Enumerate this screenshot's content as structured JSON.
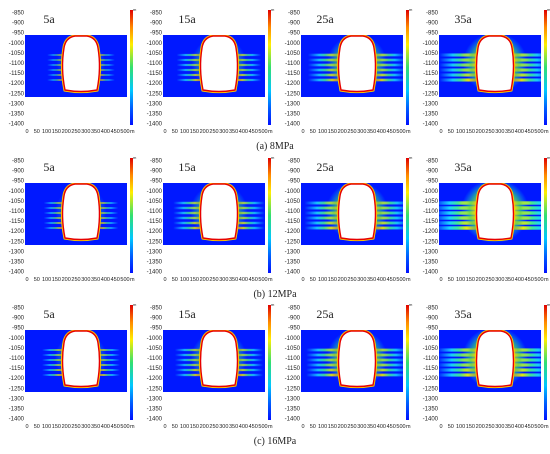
{
  "figure": {
    "rows": [
      {
        "caption": "(a) 8MPa",
        "pressure_mpa": 8,
        "panels": [
          {
            "time_label": "5a",
            "diffusion_level": 0.2
          },
          {
            "time_label": "15a",
            "diffusion_level": 0.45
          },
          {
            "time_label": "25a",
            "diffusion_level": 0.65
          },
          {
            "time_label": "35a",
            "diffusion_level": 0.85
          }
        ]
      },
      {
        "caption": "(b) 12MPa",
        "pressure_mpa": 12,
        "panels": [
          {
            "time_label": "5a",
            "diffusion_level": 0.3
          },
          {
            "time_label": "15a",
            "diffusion_level": 0.55
          },
          {
            "time_label": "25a",
            "diffusion_level": 0.75
          },
          {
            "time_label": "35a",
            "diffusion_level": 1.0
          }
        ]
      },
      {
        "caption": "(c) 16MPa",
        "pressure_mpa": 16,
        "panels": [
          {
            "time_label": "5a",
            "diffusion_level": 0.35
          },
          {
            "time_label": "15a",
            "diffusion_level": 0.5
          },
          {
            "time_label": "25a",
            "diffusion_level": 0.7
          },
          {
            "time_label": "35a",
            "diffusion_level": 0.9
          }
        ]
      }
    ],
    "y_ticks": [
      "-850",
      "-900",
      "-950",
      "-1000",
      "-1050",
      "-1100",
      "-1150",
      "-1200",
      "-1250",
      "-1300",
      "-1350",
      "-1400"
    ],
    "x_ticks": [
      "0",
      "50",
      "100",
      "150",
      "200",
      "250",
      "300",
      "350",
      "400",
      "450",
      "500"
    ],
    "x_unit": "m",
    "colorbar_unit": "m",
    "colors": {
      "background_field": "#0018ff",
      "cavern_edge": "#e60000",
      "cavern_fill": "#ffffff",
      "text": "#222222"
    }
  }
}
